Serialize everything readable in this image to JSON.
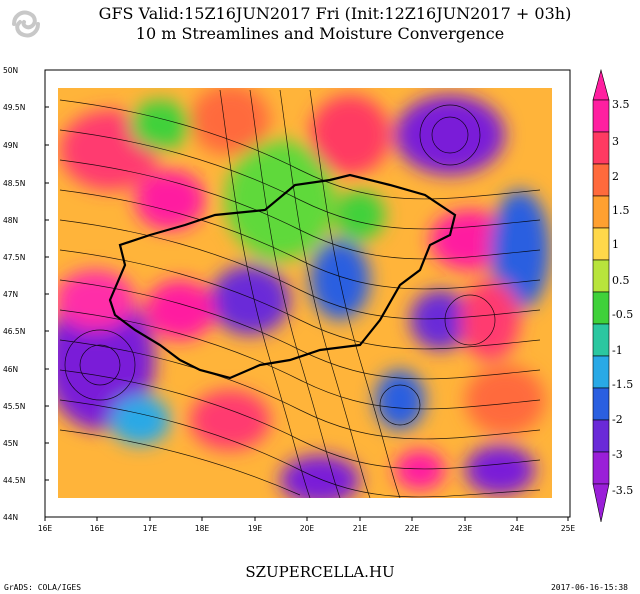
{
  "header": {
    "title_line1": "GFS Valid:15Z16JUN2017 Fri (Init:12Z16JUN2017 + 03h)",
    "title_line2": "10 m Streamlines and Moisture Convergence"
  },
  "axes": {
    "lat_labels": [
      "50N",
      "49.5N",
      "49N",
      "48.5N",
      "48N",
      "47.5N",
      "47N",
      "46.5N",
      "46N",
      "45.5N",
      "45N",
      "44.5N",
      "44N"
    ],
    "lon_labels": [
      "16E",
      "16E",
      "17E",
      "18E",
      "19E",
      "20E",
      "21E",
      "22E",
      "23E",
      "24E",
      "25E"
    ]
  },
  "colorbar": {
    "labels": [
      "3.5",
      "3",
      "2",
      "1.5",
      "1",
      "0.5",
      "-0.5",
      "-1",
      "-1.5",
      "-2",
      "-3",
      "-3.5"
    ],
    "colors": [
      "#ff1fa0",
      "#ff3a62",
      "#ff6a3c",
      "#ffa030",
      "#ffd84a",
      "#b8e43c",
      "#3fd13a",
      "#2bc7a0",
      "#29a9e6",
      "#2a5fe0",
      "#6a2ad8",
      "#9a1fd8"
    ]
  },
  "footer": {
    "site": "SZUPERCELLA.HU",
    "credit": "GrADS: COLA/IGES",
    "timestamp": "2017-06-16-15:38"
  }
}
